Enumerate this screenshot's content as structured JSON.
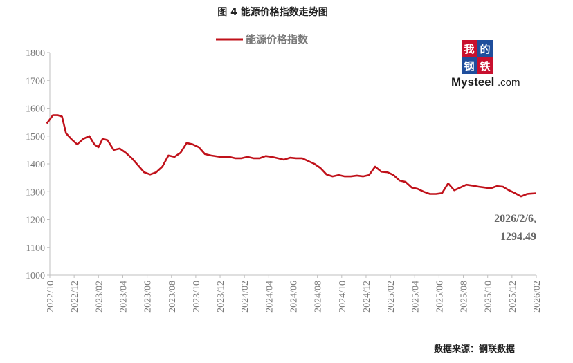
{
  "figure": {
    "title": "图 4 能源价格指数走势图",
    "source": "数据来源：钢联数据"
  },
  "logo": {
    "char1": "我",
    "char2": "的",
    "char3": "钢",
    "char4": "铁",
    "brand": "Mysteel",
    "suffix": ".com",
    "colors": [
      "#c8102e",
      "#1f4e9c",
      "#1f4e9c",
      "#c8102e"
    ]
  },
  "colors": {
    "series": "#c0111a",
    "axis": "#bfbfbf",
    "tick_text": "#7a7a7a"
  },
  "chart_data": {
    "type": "line",
    "title": "",
    "xlabel": "",
    "ylabel": "",
    "ylim": [
      1000,
      1800
    ],
    "y_ticks": [
      1000,
      1100,
      1200,
      1300,
      1400,
      1500,
      1600,
      1700,
      1800
    ],
    "x_ticks": [
      "2022/10",
      "2022/12",
      "2023/02",
      "2023/04",
      "2023/06",
      "2023/08",
      "2023/10",
      "2023/12",
      "2024/02",
      "2024/04",
      "2024/06",
      "2024/08",
      "2024/10",
      "2024/12",
      "2025/02",
      "2025/04",
      "2025/06",
      "2025/08",
      "2025/10",
      "2025/12",
      "2026/02"
    ],
    "grid": false,
    "legend_position": "top-center",
    "series": [
      {
        "name": "能源价格指数",
        "points": [
          [
            "2022/10",
            1545
          ],
          [
            "2022/10",
            1575
          ],
          [
            "2022/11",
            1575
          ],
          [
            "2022/11",
            1570
          ],
          [
            "2022/11",
            1510
          ],
          [
            "2022/12",
            1490
          ],
          [
            "2022/12",
            1470
          ],
          [
            "2023/01",
            1490
          ],
          [
            "2023/01",
            1500
          ],
          [
            "2023/02",
            1470
          ],
          [
            "2023/02",
            1460
          ],
          [
            "2023/02",
            1490
          ],
          [
            "2023/03",
            1485
          ],
          [
            "2023/03",
            1450
          ],
          [
            "2023/04",
            1455
          ],
          [
            "2023/04",
            1440
          ],
          [
            "2023/05",
            1420
          ],
          [
            "2023/05",
            1395
          ],
          [
            "2023/06",
            1370
          ],
          [
            "2023/06",
            1362
          ],
          [
            "2023/07",
            1370
          ],
          [
            "2023/07",
            1390
          ],
          [
            "2023/08",
            1430
          ],
          [
            "2023/08",
            1425
          ],
          [
            "2023/09",
            1440
          ],
          [
            "2023/09",
            1475
          ],
          [
            "2023/10",
            1470
          ],
          [
            "2023/10",
            1460
          ],
          [
            "2023/11",
            1435
          ],
          [
            "2023/11",
            1430
          ],
          [
            "2023/12",
            1425
          ],
          [
            "2024/01",
            1425
          ],
          [
            "2024/01",
            1420
          ],
          [
            "2024/02",
            1420
          ],
          [
            "2024/02",
            1425
          ],
          [
            "2024/03",
            1420
          ],
          [
            "2024/03",
            1420
          ],
          [
            "2024/04",
            1428
          ],
          [
            "2024/04",
            1425
          ],
          [
            "2024/05",
            1420
          ],
          [
            "2024/05",
            1415
          ],
          [
            "2024/06",
            1422
          ],
          [
            "2024/06",
            1420
          ],
          [
            "2024/07",
            1420
          ],
          [
            "2024/07",
            1410
          ],
          [
            "2024/08",
            1400
          ],
          [
            "2024/08",
            1385
          ],
          [
            "2024/09",
            1362
          ],
          [
            "2024/09",
            1355
          ],
          [
            "2024/10",
            1360
          ],
          [
            "2024/10",
            1355
          ],
          [
            "2024/11",
            1355
          ],
          [
            "2024/11",
            1358
          ],
          [
            "2024/12",
            1355
          ],
          [
            "2024/12",
            1360
          ],
          [
            "2025/01",
            1390
          ],
          [
            "2025/01",
            1372
          ],
          [
            "2025/02",
            1370
          ],
          [
            "2025/02",
            1360
          ],
          [
            "2025/03",
            1340
          ],
          [
            "2025/03",
            1335
          ],
          [
            "2025/04",
            1315
          ],
          [
            "2025/04",
            1310
          ],
          [
            "2025/05",
            1300
          ],
          [
            "2025/05",
            1292
          ],
          [
            "2025/06",
            1292
          ],
          [
            "2025/06",
            1295
          ],
          [
            "2025/07",
            1330
          ],
          [
            "2025/07",
            1305
          ],
          [
            "2025/08",
            1315
          ],
          [
            "2025/08",
            1325
          ],
          [
            "2025/09",
            1322
          ],
          [
            "2025/09",
            1318
          ],
          [
            "2025/10",
            1315
          ],
          [
            "2025/10",
            1312
          ],
          [
            "2025/11",
            1320
          ],
          [
            "2025/11",
            1318
          ],
          [
            "2025/12",
            1305
          ],
          [
            "2025/12",
            1295
          ],
          [
            "2026/01",
            1283
          ],
          [
            "2026/01",
            1292
          ],
          [
            "2026/02",
            1294.49
          ]
        ]
      }
    ],
    "annotations": [
      {
        "line1": "2026/2/6,",
        "line2": "1294.49"
      }
    ]
  }
}
